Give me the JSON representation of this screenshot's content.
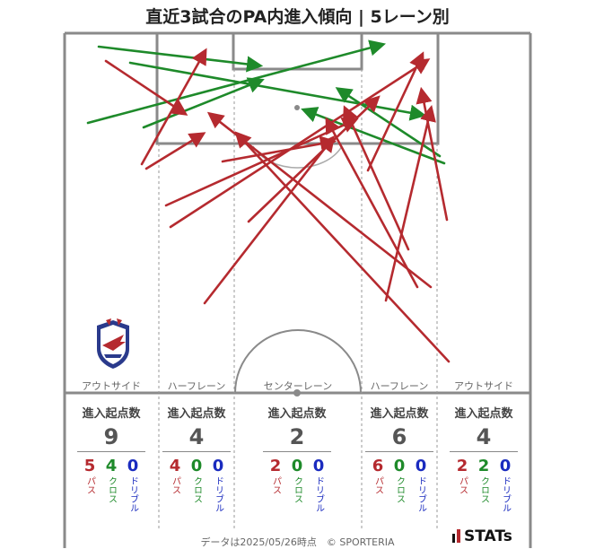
{
  "title": "直近3試合のPA内進入傾向 | 5レーン別",
  "lanes": [
    {
      "name": "アウトサイド",
      "header": "進入起点数",
      "total": "9",
      "pass": "5",
      "cross": "4",
      "dribble": "0"
    },
    {
      "name": "ハーフレーン",
      "header": "進入起点数",
      "total": "4",
      "pass": "4",
      "cross": "0",
      "dribble": "0"
    },
    {
      "name": "センターレーン",
      "header": "進入起点数",
      "total": "2",
      "pass": "2",
      "cross": "0",
      "dribble": "0"
    },
    {
      "name": "ハーフレーン",
      "header": "進入起点数",
      "total": "6",
      "pass": "6",
      "cross": "0",
      "dribble": "0"
    },
    {
      "name": "アウトサイド",
      "header": "進入起点数",
      "total": "4",
      "pass": "2",
      "cross": "2",
      "dribble": "0"
    }
  ],
  "type_labels": {
    "pass": "パス",
    "cross": "クロス",
    "dribble": "ドリブル"
  },
  "footer": "データは2025/05/26時点　© SPORTERIA",
  "logo_text": "STATs",
  "colors": {
    "pass": "#b52a2f",
    "cross": "#1e8a2a",
    "dribble": "#1a2bbf"
  },
  "entries": [
    {
      "type": "cross",
      "start": [
        110,
        52
      ],
      "end": [
        288,
        73
      ]
    },
    {
      "type": "cross",
      "start": [
        145,
        70
      ],
      "end": [
        470,
        128
      ]
    },
    {
      "type": "cross",
      "start": [
        98,
        137
      ],
      "end": [
        425,
        50
      ]
    },
    {
      "type": "cross",
      "start": [
        160,
        142
      ],
      "end": [
        290,
        90
      ]
    },
    {
      "type": "cross",
      "start": [
        495,
        182
      ],
      "end": [
        340,
        123
      ]
    },
    {
      "type": "cross",
      "start": [
        490,
        174
      ],
      "end": [
        378,
        100
      ]
    },
    {
      "type": "pass",
      "start": [
        118,
        68
      ],
      "end": [
        205,
        126
      ]
    },
    {
      "type": "pass",
      "start": [
        158,
        183
      ],
      "end": [
        228,
        58
      ]
    },
    {
      "type": "pass",
      "start": [
        163,
        188
      ],
      "end": [
        225,
        150
      ]
    },
    {
      "type": "pass",
      "start": [
        248,
        180
      ],
      "end": [
        370,
        158
      ]
    },
    {
      "type": "pass",
      "start": [
        185,
        229
      ],
      "end": [
        395,
        134
      ]
    },
    {
      "type": "pass",
      "start": [
        190,
        253
      ],
      "end": [
        475,
        68
      ]
    },
    {
      "type": "pass",
      "start": [
        277,
        247
      ],
      "end": [
        420,
        110
      ]
    },
    {
      "type": "pass",
      "start": [
        228,
        338
      ],
      "end": [
        370,
        155
      ]
    },
    {
      "type": "pass",
      "start": [
        498,
        245
      ],
      "end": [
        470,
        102
      ]
    },
    {
      "type": "pass",
      "start": [
        410,
        190
      ],
      "end": [
        470,
        62
      ]
    },
    {
      "type": "pass",
      "start": [
        430,
        335
      ],
      "end": [
        480,
        122
      ]
    },
    {
      "type": "pass",
      "start": [
        455,
        278
      ],
      "end": [
        385,
        122
      ]
    },
    {
      "type": "pass",
      "start": [
        465,
        320
      ],
      "end": [
        365,
        135
      ]
    },
    {
      "type": "pass",
      "start": [
        480,
        320
      ],
      "end": [
        235,
        128
      ]
    },
    {
      "type": "pass",
      "start": [
        500,
        403
      ],
      "end": [
        265,
        150
      ]
    }
  ]
}
